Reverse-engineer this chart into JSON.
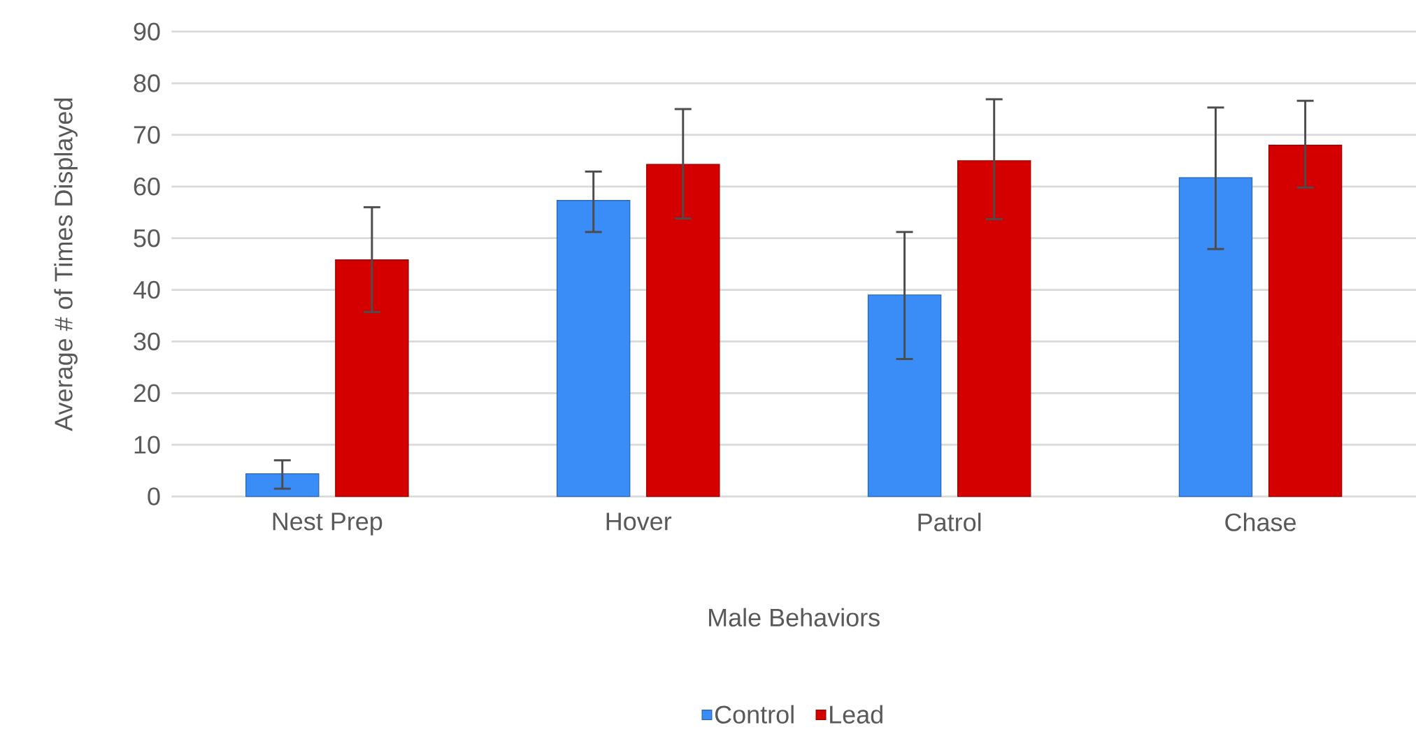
{
  "chart_data": {
    "type": "bar",
    "xlabel": "Male Behaviors",
    "ylabel": "Average # of Times Displayed",
    "categories": [
      "Nest Prep",
      "Hover",
      "Patrol",
      "Chase"
    ],
    "series": [
      {
        "name": "Control",
        "color": "#3a8cf7",
        "values": [
          4.4,
          57.3,
          39,
          61.7
        ],
        "errors": [
          [
            1.5,
            7
          ],
          [
            51.2,
            62.9
          ],
          [
            26.6,
            51.2
          ],
          [
            47.9,
            75.3
          ]
        ]
      },
      {
        "name": "Lead",
        "color": "#d40000",
        "values": [
          45.8,
          64.3,
          65,
          68
        ],
        "errors": [
          [
            35.7,
            56
          ],
          [
            53.8,
            75
          ],
          [
            53.7,
            76.9
          ],
          [
            59.8,
            76.6
          ]
        ]
      }
    ],
    "ylim": [
      0,
      90
    ],
    "yticks": [
      0,
      10,
      20,
      30,
      40,
      50,
      60,
      70,
      80,
      90
    ],
    "grid": "y",
    "legend": "bottom"
  }
}
